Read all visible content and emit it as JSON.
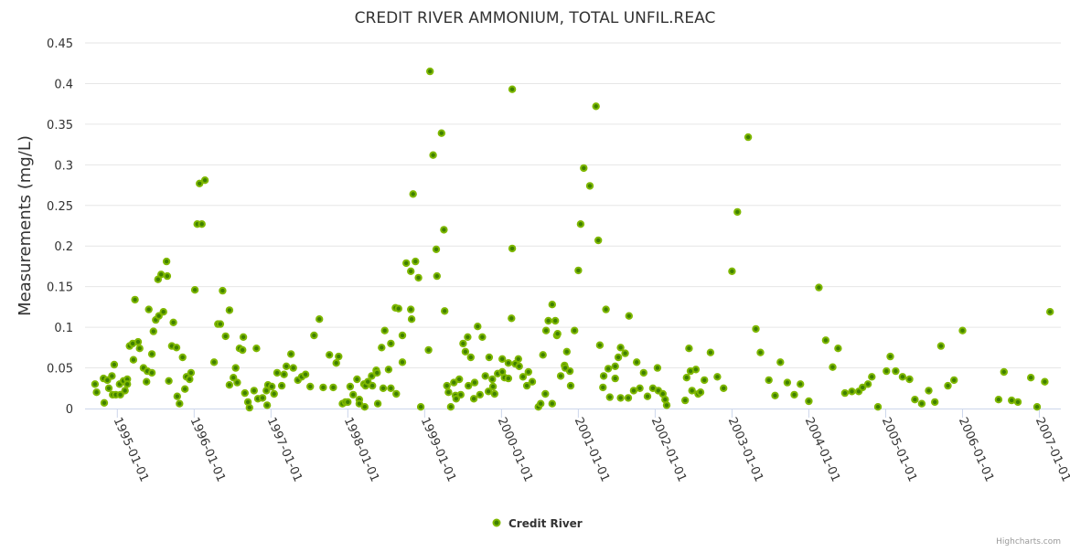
{
  "chart_data": {
    "type": "scatter",
    "title": "CREDIT RIVER AMMONIUM, TOTAL UNFIL.REAC",
    "xlabel": "",
    "ylabel": "Measurements (mg/L)",
    "x_units": "decimal year",
    "xlim": [
      1994.58,
      2007.28
    ],
    "ylim": [
      0,
      0.45
    ],
    "yticks": [
      0,
      0.05,
      0.1,
      0.15,
      0.2,
      0.25,
      0.3,
      0.35,
      0.4,
      0.45
    ],
    "ytick_labels": [
      "0",
      "0.05",
      "0.1",
      "0.15",
      "0.2",
      "0.25",
      "0.3",
      "0.35",
      "0.4",
      "0.45"
    ],
    "xticks": [
      1995,
      1996,
      1997,
      1998,
      1999,
      2000,
      2001,
      2002,
      2003,
      2004,
      2005,
      2006,
      2007
    ],
    "xtick_labels": [
      "1995-01-01",
      "1996-01-01",
      "1997-01-01",
      "1998-01-01",
      "1999-01-01",
      "2000-01-01",
      "2001-01-01",
      "2002-01-01",
      "2003-01-01",
      "2004-01-01",
      "2005-01-01",
      "2006-01-01",
      "2007-01-01"
    ],
    "grid": true,
    "legend_position": "bottom-center",
    "series": [
      {
        "name": "Credit River",
        "color": "#6fa800",
        "points": [
          [
            1994.71,
            0.03
          ],
          [
            1994.73,
            0.02
          ],
          [
            1994.82,
            0.037
          ],
          [
            1994.83,
            0.007
          ],
          [
            1994.87,
            0.035
          ],
          [
            1994.89,
            0.025
          ],
          [
            1994.93,
            0.04
          ],
          [
            1994.94,
            0.017
          ],
          [
            1994.96,
            0.054
          ],
          [
            1994.98,
            0.017
          ],
          [
            1995.03,
            0.03
          ],
          [
            1995.04,
            0.017
          ],
          [
            1995.08,
            0.034
          ],
          [
            1995.1,
            0.022
          ],
          [
            1995.13,
            0.036
          ],
          [
            1995.13,
            0.03
          ],
          [
            1995.16,
            0.077
          ],
          [
            1995.2,
            0.08
          ],
          [
            1995.21,
            0.06
          ],
          [
            1995.23,
            0.134
          ],
          [
            1995.27,
            0.082
          ],
          [
            1995.29,
            0.074
          ],
          [
            1995.34,
            0.05
          ],
          [
            1995.38,
            0.033
          ],
          [
            1995.39,
            0.046
          ],
          [
            1995.41,
            0.122
          ],
          [
            1995.45,
            0.044
          ],
          [
            1995.45,
            0.067
          ],
          [
            1995.47,
            0.095
          ],
          [
            1995.5,
            0.109
          ],
          [
            1995.53,
            0.159
          ],
          [
            1995.54,
            0.114
          ],
          [
            1995.57,
            0.165
          ],
          [
            1995.6,
            0.119
          ],
          [
            1995.64,
            0.181
          ],
          [
            1995.65,
            0.163
          ],
          [
            1995.67,
            0.034
          ],
          [
            1995.71,
            0.077
          ],
          [
            1995.73,
            0.106
          ],
          [
            1995.77,
            0.075
          ],
          [
            1995.78,
            0.015
          ],
          [
            1995.81,
            0.006
          ],
          [
            1995.85,
            0.063
          ],
          [
            1995.88,
            0.024
          ],
          [
            1995.9,
            0.039
          ],
          [
            1995.94,
            0.036
          ],
          [
            1995.96,
            0.044
          ],
          [
            1996.01,
            0.146
          ],
          [
            1996.04,
            0.227
          ],
          [
            1996.07,
            0.277
          ],
          [
            1996.1,
            0.227
          ],
          [
            1996.14,
            0.281
          ],
          [
            1996.26,
            0.057
          ],
          [
            1996.31,
            0.104
          ],
          [
            1996.34,
            0.104
          ],
          [
            1996.37,
            0.145
          ],
          [
            1996.41,
            0.089
          ],
          [
            1996.46,
            0.121
          ],
          [
            1996.46,
            0.029
          ],
          [
            1996.51,
            0.038
          ],
          [
            1996.54,
            0.05
          ],
          [
            1996.56,
            0.032
          ],
          [
            1996.59,
            0.074
          ],
          [
            1996.63,
            0.072
          ],
          [
            1996.64,
            0.088
          ],
          [
            1996.66,
            0.019
          ],
          [
            1996.7,
            0.008
          ],
          [
            1996.72,
            0.001
          ],
          [
            1996.78,
            0.022
          ],
          [
            1996.81,
            0.074
          ],
          [
            1996.83,
            0.012
          ],
          [
            1996.89,
            0.013
          ],
          [
            1996.94,
            0.022
          ],
          [
            1996.95,
            0.004
          ],
          [
            1996.96,
            0.029
          ],
          [
            1997.01,
            0.027
          ],
          [
            1997.04,
            0.018
          ],
          [
            1997.08,
            0.044
          ],
          [
            1997.14,
            0.028
          ],
          [
            1997.17,
            0.042
          ],
          [
            1997.2,
            0.052
          ],
          [
            1997.26,
            0.067
          ],
          [
            1997.29,
            0.05
          ],
          [
            1997.35,
            0.035
          ],
          [
            1997.4,
            0.039
          ],
          [
            1997.45,
            0.042
          ],
          [
            1997.51,
            0.027
          ],
          [
            1997.56,
            0.09
          ],
          [
            1997.63,
            0.11
          ],
          [
            1997.68,
            0.026
          ],
          [
            1997.76,
            0.066
          ],
          [
            1997.81,
            0.026
          ],
          [
            1997.85,
            0.056
          ],
          [
            1997.88,
            0.064
          ],
          [
            1997.93,
            0.006
          ],
          [
            1997.97,
            0.008
          ],
          [
            1998.0,
            0.008
          ],
          [
            1998.03,
            0.027
          ],
          [
            1998.07,
            0.017
          ],
          [
            1998.12,
            0.036
          ],
          [
            1998.15,
            0.011
          ],
          [
            1998.15,
            0.006
          ],
          [
            1998.21,
            0.03
          ],
          [
            1998.22,
            0.002
          ],
          [
            1998.23,
            0.028
          ],
          [
            1998.26,
            0.033
          ],
          [
            1998.31,
            0.04
          ],
          [
            1998.32,
            0.028
          ],
          [
            1998.37,
            0.047
          ],
          [
            1998.38,
            0.044
          ],
          [
            1998.39,
            0.006
          ],
          [
            1998.44,
            0.075
          ],
          [
            1998.46,
            0.025
          ],
          [
            1998.48,
            0.096
          ],
          [
            1998.53,
            0.048
          ],
          [
            1998.56,
            0.08
          ],
          [
            1998.56,
            0.025
          ],
          [
            1998.62,
            0.124
          ],
          [
            1998.63,
            0.018
          ],
          [
            1998.66,
            0.123
          ],
          [
            1998.71,
            0.057
          ],
          [
            1998.71,
            0.09
          ],
          [
            1998.76,
            0.179
          ],
          [
            1998.82,
            0.169
          ],
          [
            1998.82,
            0.122
          ],
          [
            1998.83,
            0.11
          ],
          [
            1998.85,
            0.264
          ],
          [
            1998.88,
            0.181
          ],
          [
            1998.92,
            0.161
          ],
          [
            1998.95,
            0.002
          ],
          [
            1999.05,
            0.072
          ],
          [
            1999.07,
            0.415
          ],
          [
            1999.11,
            0.312
          ],
          [
            1999.15,
            0.196
          ],
          [
            1999.16,
            0.163
          ],
          [
            1999.22,
            0.339
          ],
          [
            1999.25,
            0.22
          ],
          [
            1999.26,
            0.12
          ],
          [
            1999.29,
            0.028
          ],
          [
            1999.31,
            0.02
          ],
          [
            1999.34,
            0.002
          ],
          [
            1999.38,
            0.032
          ],
          [
            1999.4,
            0.016
          ],
          [
            1999.41,
            0.012
          ],
          [
            1999.45,
            0.036
          ],
          [
            1999.47,
            0.017
          ],
          [
            1999.5,
            0.08
          ],
          [
            1999.53,
            0.07
          ],
          [
            1999.56,
            0.088
          ],
          [
            1999.57,
            0.028
          ],
          [
            1999.6,
            0.063
          ],
          [
            1999.64,
            0.012
          ],
          [
            1999.65,
            0.032
          ],
          [
            1999.69,
            0.101
          ],
          [
            1999.72,
            0.017
          ],
          [
            1999.75,
            0.088
          ],
          [
            1999.79,
            0.04
          ],
          [
            1999.83,
            0.021
          ],
          [
            1999.84,
            0.063
          ],
          [
            1999.88,
            0.036
          ],
          [
            1999.89,
            0.027
          ],
          [
            1999.91,
            0.018
          ],
          [
            1999.95,
            0.043
          ],
          [
            2000.01,
            0.061
          ],
          [
            2000.01,
            0.045
          ],
          [
            2000.04,
            0.038
          ],
          [
            2000.09,
            0.037
          ],
          [
            2000.09,
            0.056
          ],
          [
            2000.13,
            0.111
          ],
          [
            2000.14,
            0.393
          ],
          [
            2000.14,
            0.197
          ],
          [
            2000.18,
            0.055
          ],
          [
            2000.22,
            0.061
          ],
          [
            2000.23,
            0.052
          ],
          [
            2000.28,
            0.039
          ],
          [
            2000.33,
            0.028
          ],
          [
            2000.35,
            0.045
          ],
          [
            2000.4,
            0.033
          ],
          [
            2000.48,
            0.002
          ],
          [
            2000.51,
            0.006
          ],
          [
            2000.54,
            0.066
          ],
          [
            2000.57,
            0.018
          ],
          [
            2000.58,
            0.096
          ],
          [
            2000.61,
            0.108
          ],
          [
            2000.66,
            0.128
          ],
          [
            2000.66,
            0.006
          ],
          [
            2000.7,
            0.108
          ],
          [
            2000.72,
            0.09
          ],
          [
            2000.73,
            0.092
          ],
          [
            2000.77,
            0.04
          ],
          [
            2000.82,
            0.053
          ],
          [
            2000.83,
            0.05
          ],
          [
            2000.85,
            0.07
          ],
          [
            2000.89,
            0.046
          ],
          [
            2000.9,
            0.028
          ],
          [
            2000.95,
            0.096
          ],
          [
            2001.0,
            0.17
          ],
          [
            2001.03,
            0.227
          ],
          [
            2001.07,
            0.296
          ],
          [
            2001.15,
            0.274
          ],
          [
            2001.23,
            0.372
          ],
          [
            2001.26,
            0.207
          ],
          [
            2001.28,
            0.078
          ],
          [
            2001.32,
            0.026
          ],
          [
            2001.33,
            0.04
          ],
          [
            2001.36,
            0.122
          ],
          [
            2001.39,
            0.049
          ],
          [
            2001.41,
            0.014
          ],
          [
            2001.48,
            0.037
          ],
          [
            2001.48,
            0.052
          ],
          [
            2001.52,
            0.063
          ],
          [
            2001.55,
            0.013
          ],
          [
            2001.55,
            0.075
          ],
          [
            2001.61,
            0.068
          ],
          [
            2001.65,
            0.013
          ],
          [
            2001.66,
            0.114
          ],
          [
            2001.72,
            0.022
          ],
          [
            2001.76,
            0.057
          ],
          [
            2001.8,
            0.025
          ],
          [
            2001.85,
            0.044
          ],
          [
            2001.9,
            0.015
          ],
          [
            2001.97,
            0.025
          ],
          [
            2002.03,
            0.05
          ],
          [
            2002.04,
            0.022
          ],
          [
            2002.1,
            0.018
          ],
          [
            2002.13,
            0.011
          ],
          [
            2002.15,
            0.004
          ],
          [
            2002.39,
            0.01
          ],
          [
            2002.41,
            0.038
          ],
          [
            2002.44,
            0.074
          ],
          [
            2002.46,
            0.046
          ],
          [
            2002.48,
            0.022
          ],
          [
            2002.53,
            0.048
          ],
          [
            2002.56,
            0.018
          ],
          [
            2002.59,
            0.02
          ],
          [
            2002.64,
            0.035
          ],
          [
            2002.72,
            0.069
          ],
          [
            2002.81,
            0.039
          ],
          [
            2002.89,
            0.025
          ],
          [
            2003.0,
            0.169
          ],
          [
            2003.07,
            0.242
          ],
          [
            2003.21,
            0.334
          ],
          [
            2003.31,
            0.098
          ],
          [
            2003.37,
            0.069
          ],
          [
            2003.48,
            0.035
          ],
          [
            2003.56,
            0.016
          ],
          [
            2003.63,
            0.057
          ],
          [
            2003.72,
            0.032
          ],
          [
            2003.81,
            0.017
          ],
          [
            2003.89,
            0.03
          ],
          [
            2004.0,
            0.009
          ],
          [
            2004.13,
            0.149
          ],
          [
            2004.22,
            0.084
          ],
          [
            2004.31,
            0.051
          ],
          [
            2004.38,
            0.074
          ],
          [
            2004.47,
            0.019
          ],
          [
            2004.56,
            0.021
          ],
          [
            2004.65,
            0.021
          ],
          [
            2004.7,
            0.026
          ],
          [
            2004.77,
            0.03
          ],
          [
            2004.82,
            0.039
          ],
          [
            2004.9,
            0.002
          ],
          [
            2005.01,
            0.046
          ],
          [
            2005.06,
            0.064
          ],
          [
            2005.13,
            0.046
          ],
          [
            2005.22,
            0.039
          ],
          [
            2005.31,
            0.036
          ],
          [
            2005.38,
            0.011
          ],
          [
            2005.47,
            0.006
          ],
          [
            2005.56,
            0.022
          ],
          [
            2005.64,
            0.008
          ],
          [
            2005.72,
            0.077
          ],
          [
            2005.81,
            0.028
          ],
          [
            2005.89,
            0.035
          ],
          [
            2006.0,
            0.096
          ],
          [
            2006.47,
            0.011
          ],
          [
            2006.54,
            0.045
          ],
          [
            2006.64,
            0.01
          ],
          [
            2006.72,
            0.008
          ],
          [
            2006.89,
            0.038
          ],
          [
            2006.97,
            0.002
          ],
          [
            2007.07,
            0.033
          ],
          [
            2007.14,
            0.119
          ]
        ]
      }
    ]
  },
  "credits": "Highcharts.com"
}
